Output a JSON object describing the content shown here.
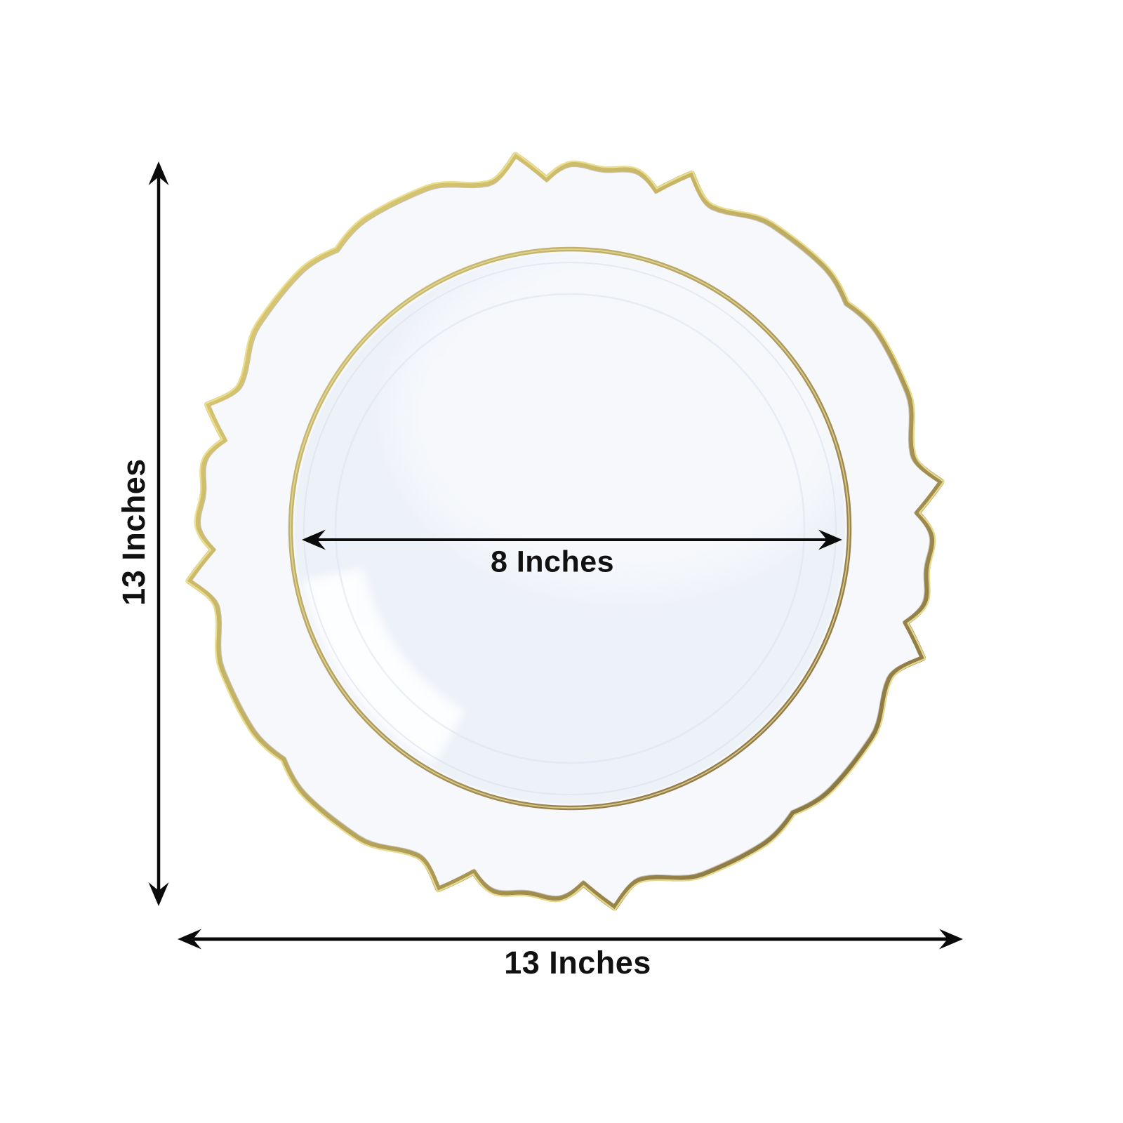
{
  "diagram": {
    "background": "#ffffff",
    "dimensions": {
      "height": {
        "label": "13 Inches",
        "orientation": "vertical"
      },
      "width": {
        "label": "13 Inches",
        "orientation": "horizontal"
      },
      "inner_diameter": {
        "label": "8 Inches",
        "orientation": "horizontal"
      }
    },
    "plate": {
      "rim_fill": "#f6f8fc",
      "well_fill": "#edf1f8",
      "edge_gold_light": "#dccb74",
      "edge_gold_dark": "#7c6838",
      "edge_gold_highlight": "#ece293",
      "ring_gold_light": "#cfc073",
      "ring_gold_dark": "#8a7040",
      "ring_gold_highlight": "#e8dfa0",
      "faint_line": "#dce2ee",
      "glare": "#ffffff"
    },
    "arrow_color": "#0b0b0b",
    "label_color": "#111111"
  }
}
